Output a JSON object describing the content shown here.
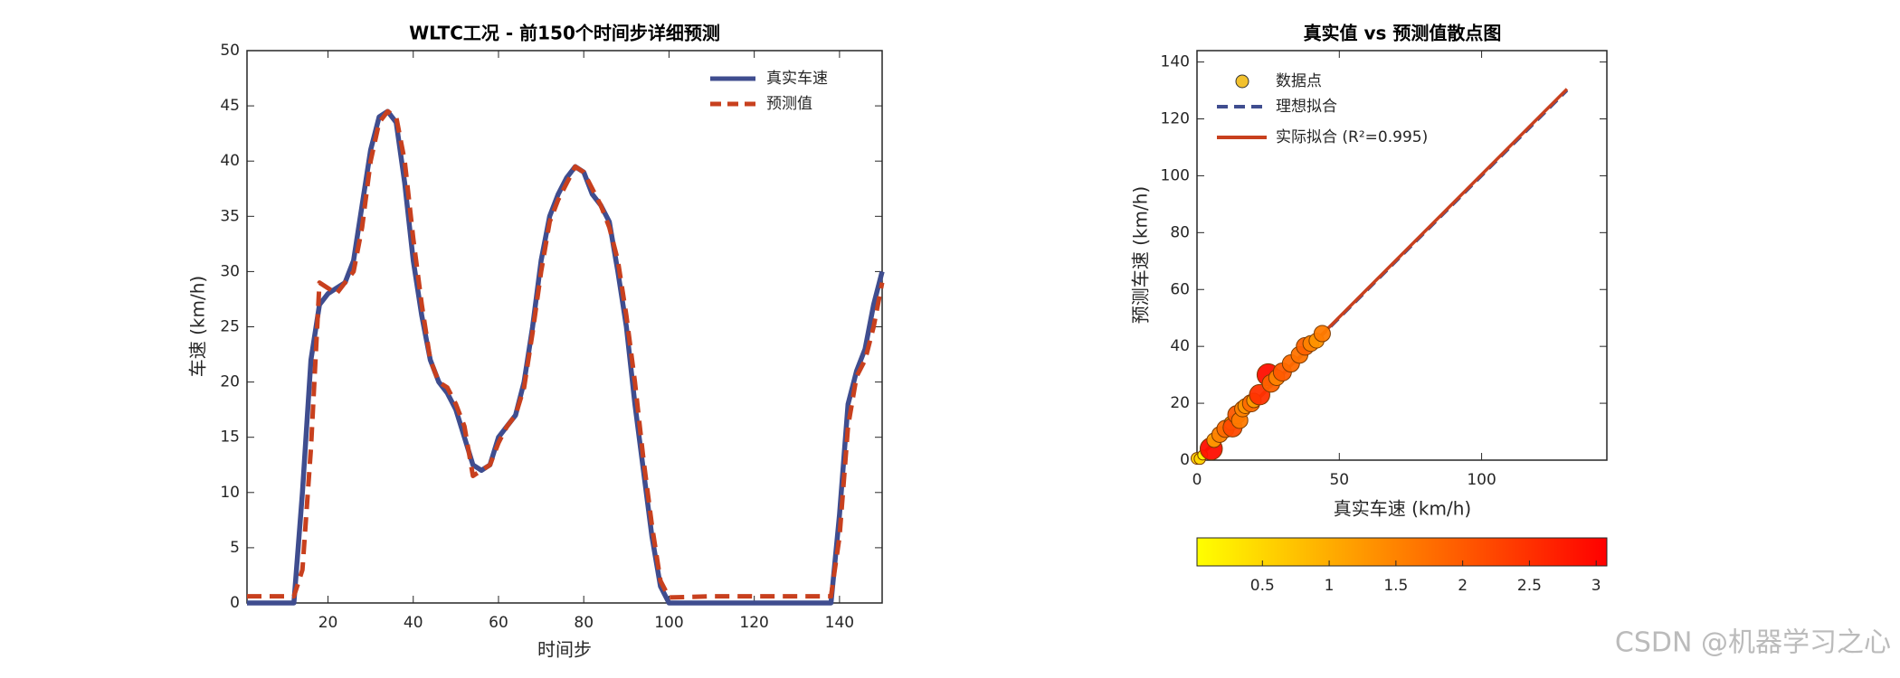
{
  "chart_data": [
    {
      "type": "line",
      "title": "WLTC工况 - 前150个时间步详细预测",
      "x_label": "时间步",
      "y_label": "车速 (km/h)",
      "x": [
        1,
        6,
        12,
        14,
        16,
        18,
        20,
        22,
        24,
        26,
        28,
        30,
        32,
        34,
        36,
        38,
        40,
        42,
        44,
        46,
        48,
        50,
        52,
        54,
        56,
        58,
        60,
        62,
        64,
        66,
        68,
        70,
        72,
        74,
        76,
        78,
        80,
        82,
        84,
        86,
        88,
        90,
        92,
        94,
        96,
        98,
        100,
        110,
        120,
        130,
        138,
        140,
        142,
        144,
        146,
        148,
        150
      ],
      "series": [
        {
          "name": "真实车速",
          "color": "#3f4d8f",
          "dash": false,
          "values": [
            0,
            0,
            0,
            10,
            22,
            27,
            28,
            28.5,
            29,
            31,
            36,
            41,
            44,
            44.5,
            43.5,
            38,
            31,
            26,
            22,
            20,
            19,
            17.5,
            15,
            12.5,
            12,
            12.5,
            15,
            16,
            17,
            20,
            25,
            31,
            35,
            37,
            38.5,
            39.5,
            39,
            37,
            36,
            34.5,
            30,
            25,
            18,
            12,
            6,
            1.5,
            0,
            0,
            0,
            0,
            0,
            8,
            18,
            21,
            23,
            27,
            30
          ]
        },
        {
          "name": "预测值",
          "color": "#c8401e",
          "dash": true,
          "values": [
            0.6,
            0.6,
            0.6,
            3,
            14,
            29,
            28.5,
            28,
            29,
            30,
            34,
            40,
            43.5,
            44.5,
            44,
            40,
            33,
            27,
            22,
            20,
            19.5,
            18,
            16,
            11.5,
            12,
            12.5,
            14.5,
            16,
            17,
            19.5,
            24.5,
            30,
            34.5,
            36.5,
            38,
            39.5,
            39,
            37.5,
            36,
            34,
            31,
            26,
            20,
            13,
            7,
            2,
            0.5,
            0.6,
            0.6,
            0.6,
            0.6,
            6,
            16,
            20.5,
            22,
            25,
            29
          ]
        }
      ],
      "xlim": [
        1,
        150
      ],
      "xticks": [
        20,
        40,
        60,
        80,
        100,
        120,
        140
      ],
      "ylim": [
        0,
        50
      ],
      "yticks": [
        0,
        5,
        10,
        15,
        20,
        25,
        30,
        35,
        40,
        45,
        50
      ],
      "legend": "top-right"
    },
    {
      "type": "scatter",
      "title": "真实值 vs 预测值散点图",
      "x_label": "真实车速 (km/h)",
      "y_label": "预测车速 (km/h)",
      "point_name": "数据点",
      "point_color": "#f2c12e",
      "x": [
        0,
        1,
        2,
        5,
        6,
        8,
        10,
        12,
        12.5,
        14,
        15,
        16,
        17,
        19,
        20,
        22,
        25,
        26,
        28,
        30,
        33,
        36,
        38,
        40,
        42,
        44
      ],
      "y": [
        0.6,
        0.5,
        1.8,
        4,
        7,
        9,
        11,
        13,
        11.5,
        16,
        14,
        18,
        19,
        20,
        21,
        23,
        30,
        27,
        29,
        31,
        34,
        37,
        40,
        41,
        42,
        44.5
      ],
      "color_values": [
        0.6,
        0.5,
        0.2,
        2.9,
        1.2,
        1.5,
        1.8,
        1.1,
        2.2,
        2,
        1.6,
        1.5,
        1.3,
        1.8,
        1.2,
        2.5,
        2.9,
        1.9,
        1.5,
        2,
        1.8,
        1.7,
        1.9,
        1.5,
        1.3,
        1.6
      ],
      "lines": [
        {
          "name": "理想拟合",
          "color": "#3f4d8f",
          "dash": true,
          "x": [
            0,
            130
          ],
          "y": [
            0,
            130
          ]
        },
        {
          "name": "实际拟合 (R²=0.995)",
          "color": "#c8401e",
          "dash": false,
          "x": [
            0,
            130
          ],
          "y": [
            0.2,
            130.5
          ]
        }
      ],
      "xlim": [
        0,
        144
      ],
      "xticks": [
        0,
        50,
        100
      ],
      "ylim": [
        0,
        144
      ],
      "yticks": [
        0,
        20,
        40,
        60,
        80,
        100,
        120,
        140
      ],
      "legend": "top-left",
      "colorbar": {
        "clim": [
          0.01,
          3.08
        ],
        "ticks": [
          0.5,
          1,
          1.5,
          2,
          2.5,
          3
        ],
        "colors": [
          "#ffff00",
          "#ff0000"
        ]
      }
    }
  ],
  "watermark": "CSDN @机器学习之心"
}
